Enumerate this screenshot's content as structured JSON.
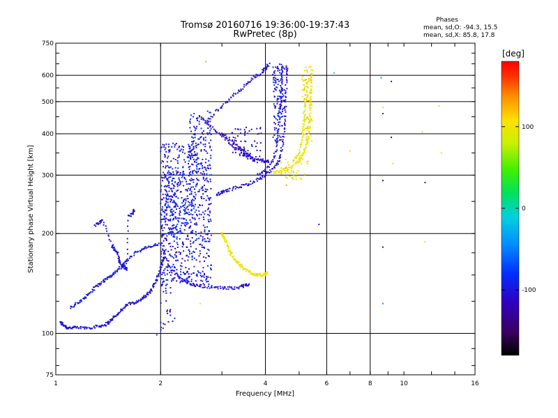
{
  "chart_data": {
    "type": "scatter",
    "title": "Tromsø 20160716 19:36:00-19:37:43",
    "subtitle": "RwPretec (8p)",
    "stats": {
      "heading": "Phases",
      "line_o": "mean, sd,O: -94.3, 15.5",
      "line_x": "mean, sd,X:  85.8, 17.8"
    },
    "xlabel": "Frequency [MHz]",
    "ylabel": "Stationary phase Virtual Height [km]",
    "xscale": "log",
    "yscale": "log",
    "xlim": [
      1,
      16
    ],
    "ylim": [
      75,
      750
    ],
    "x_major_ticks": [
      1,
      2,
      4,
      6,
      8,
      10,
      16
    ],
    "x_tick_labels": [
      "1",
      "2",
      "4",
      "6",
      "8",
      "10",
      "16"
    ],
    "y_major_ticks": [
      75,
      100,
      200,
      300,
      400,
      500,
      600,
      750
    ],
    "y_tick_labels": [
      "75",
      "100",
      "200",
      "300",
      "400",
      "500",
      "600",
      "750"
    ],
    "grid": true,
    "grid_x": [
      2,
      4,
      6,
      8
    ],
    "grid_y": [
      100,
      200,
      300,
      400,
      500,
      600
    ],
    "colorbar": {
      "label": "[deg]",
      "range": [
        -180,
        180
      ],
      "ticks": [
        100,
        0,
        -100
      ],
      "tick_labels": [
        "100",
        "0",
        "-100"
      ]
    },
    "traces": [
      {
        "name_hint": "low_E_ordinary",
        "phase": -100,
        "points": [
          [
            1.03,
            108
          ],
          [
            1.05,
            106
          ],
          [
            1.08,
            104
          ],
          [
            1.12,
            104
          ],
          [
            1.18,
            104
          ],
          [
            1.25,
            104
          ],
          [
            1.32,
            105
          ],
          [
            1.38,
            106
          ],
          [
            1.42,
            108
          ],
          [
            1.46,
            111
          ],
          [
            1.5,
            114
          ],
          [
            1.55,
            118
          ],
          [
            1.6,
            122
          ],
          [
            1.68,
            124
          ],
          [
            1.75,
            126
          ],
          [
            1.8,
            129
          ],
          [
            1.85,
            132
          ],
          [
            1.9,
            138
          ],
          [
            1.95,
            146
          ],
          [
            2.0,
            156
          ],
          [
            2.02,
            164
          ],
          [
            2.05,
            170
          ]
        ]
      },
      {
        "name_hint": "low_E_upper",
        "phase": -95,
        "points": [
          [
            1.1,
            120
          ],
          [
            1.15,
            123
          ],
          [
            1.2,
            127
          ],
          [
            1.25,
            132
          ],
          [
            1.3,
            138
          ],
          [
            1.35,
            142
          ],
          [
            1.4,
            146
          ],
          [
            1.45,
            150
          ],
          [
            1.5,
            154
          ],
          [
            1.55,
            160
          ],
          [
            1.6,
            166
          ],
          [
            1.7,
            176
          ],
          [
            1.8,
            180
          ],
          [
            1.9,
            184
          ],
          [
            2.0,
            186
          ]
        ]
      },
      {
        "name_hint": "steep_E",
        "phase": -100,
        "points": [
          [
            1.3,
            212
          ],
          [
            1.34,
            216
          ],
          [
            1.36,
            220
          ],
          [
            1.45,
            185
          ],
          [
            1.47,
            180
          ],
          [
            1.5,
            176
          ],
          [
            1.52,
            166
          ],
          [
            1.55,
            160
          ],
          [
            1.58,
            158
          ],
          [
            1.6,
            156
          ],
          [
            1.62,
            225
          ],
          [
            1.66,
            230
          ],
          [
            1.68,
            235
          ]
        ]
      },
      {
        "name_hint": "F_lower_o",
        "phase": -105,
        "points": [
          [
            2.1,
            160
          ],
          [
            2.2,
            152
          ],
          [
            2.3,
            145
          ],
          [
            2.4,
            142
          ],
          [
            2.5,
            140
          ],
          [
            2.6,
            139
          ],
          [
            2.8,
            138
          ],
          [
            3.0,
            137
          ],
          [
            3.2,
            137
          ],
          [
            3.4,
            138
          ],
          [
            3.5,
            140
          ],
          [
            3.6,
            141
          ]
        ]
      },
      {
        "name_hint": "F_x_yellow_low",
        "phase": 100,
        "points": [
          [
            3.0,
            200
          ],
          [
            3.05,
            195
          ],
          [
            3.1,
            185
          ],
          [
            3.15,
            178
          ],
          [
            3.2,
            172
          ],
          [
            3.3,
            165
          ],
          [
            3.4,
            160
          ],
          [
            3.5,
            156
          ],
          [
            3.6,
            153
          ],
          [
            3.7,
            151
          ],
          [
            3.8,
            150
          ],
          [
            3.9,
            150
          ],
          [
            4.0,
            151
          ],
          [
            4.05,
            152
          ]
        ]
      },
      {
        "name_hint": "F2_o_cusp",
        "phase": -105,
        "points": [
          [
            2.9,
            262
          ],
          [
            3.0,
            266
          ],
          [
            3.1,
            270
          ],
          [
            3.3,
            275
          ],
          [
            3.5,
            280
          ],
          [
            3.7,
            287
          ],
          [
            3.9,
            295
          ],
          [
            4.1,
            305
          ],
          [
            4.3,
            320
          ],
          [
            4.4,
            340
          ],
          [
            4.5,
            380
          ],
          [
            4.55,
            440
          ],
          [
            4.58,
            520
          ],
          [
            4.6,
            600
          ],
          [
            4.62,
            640
          ]
        ]
      },
      {
        "name_hint": "F2_o_inner",
        "phase": -100,
        "points": [
          [
            3.8,
            300
          ],
          [
            4.0,
            310
          ],
          [
            4.2,
            330
          ],
          [
            4.3,
            360
          ],
          [
            4.35,
            400
          ],
          [
            4.4,
            460
          ],
          [
            4.43,
            520
          ],
          [
            4.45,
            580
          ],
          [
            4.48,
            630
          ]
        ]
      },
      {
        "name_hint": "F2_x_yellow",
        "phase": 100,
        "points": [
          [
            4.2,
            305
          ],
          [
            4.4,
            308
          ],
          [
            4.6,
            312
          ],
          [
            4.8,
            320
          ],
          [
            5.0,
            330
          ],
          [
            5.1,
            345
          ],
          [
            5.2,
            360
          ],
          [
            5.3,
            385
          ],
          [
            5.35,
            420
          ],
          [
            5.38,
            470
          ],
          [
            5.4,
            520
          ],
          [
            5.42,
            570
          ],
          [
            5.44,
            630
          ]
        ]
      },
      {
        "name_hint": "F2_x_inner",
        "phase": 90,
        "points": [
          [
            4.8,
            330
          ],
          [
            5.0,
            350
          ],
          [
            5.1,
            380
          ],
          [
            5.15,
            420
          ],
          [
            5.2,
            470
          ],
          [
            5.25,
            520
          ],
          [
            5.3,
            580
          ]
        ]
      },
      {
        "name_hint": "oblique_upper",
        "phase": -100,
        "points": [
          [
            2.7,
            430
          ],
          [
            2.9,
            470
          ],
          [
            3.1,
            500
          ],
          [
            3.3,
            530
          ],
          [
            3.5,
            560
          ],
          [
            3.7,
            590
          ],
          [
            3.9,
            610
          ],
          [
            4.0,
            630
          ],
          [
            4.1,
            650
          ]
        ]
      },
      {
        "name_hint": "oblique_mid",
        "phase": -110,
        "points": [
          [
            3.0,
            400
          ],
          [
            3.2,
            380
          ],
          [
            3.4,
            360
          ],
          [
            3.5,
            350
          ],
          [
            3.7,
            340
          ],
          [
            3.9,
            333
          ],
          [
            4.0,
            330
          ],
          [
            4.1,
            330
          ]
        ]
      },
      {
        "name_hint": "oblique_mid2",
        "phase": -115,
        "points": [
          [
            2.6,
            450
          ],
          [
            2.8,
            420
          ],
          [
            3.0,
            395
          ],
          [
            3.2,
            372
          ],
          [
            3.4,
            352
          ],
          [
            3.6,
            338
          ],
          [
            3.8,
            330
          ]
        ]
      }
    ],
    "scatter_clusters": [
      {
        "x": [
          2.0,
          2.8
        ],
        "y": [
          140,
          380
        ],
        "phase": -100,
        "n": 650
      },
      {
        "x": [
          2.05,
          2.5
        ],
        "y": [
          200,
          310
        ],
        "phase": -90,
        "n": 150
      },
      {
        "x": [
          2.4,
          2.8
        ],
        "y": [
          300,
          470
        ],
        "phase": -95,
        "n": 120
      },
      {
        "x": [
          2.0,
          2.2
        ],
        "y": [
          100,
          300
        ],
        "phase": -100,
        "n": 80
      },
      {
        "x": [
          3.2,
          3.9
        ],
        "y": [
          340,
          420
        ],
        "phase": -110,
        "n": 60
      },
      {
        "x": [
          4.2,
          4.55
        ],
        "y": [
          380,
          650
        ],
        "phase": -100,
        "n": 120
      },
      {
        "x": [
          5.1,
          5.45
        ],
        "y": [
          380,
          640
        ],
        "phase": 100,
        "n": 80
      },
      {
        "x": [
          4.4,
          5.3
        ],
        "y": [
          290,
          340
        ],
        "phase": 100,
        "n": 40
      }
    ],
    "sparse_points": [
      {
        "x": 2.7,
        "y": 660,
        "phase": 60
      },
      {
        "x": 6.3,
        "y": 610,
        "phase": -20
      },
      {
        "x": 8.6,
        "y": 590,
        "phase": -40
      },
      {
        "x": 9.2,
        "y": 575,
        "phase": -100
      },
      {
        "x": 8.7,
        "y": 480,
        "phase": 110
      },
      {
        "x": 8.7,
        "y": 460,
        "phase": -100
      },
      {
        "x": 12.6,
        "y": 485,
        "phase": 110
      },
      {
        "x": 9.2,
        "y": 390,
        "phase": -140
      },
      {
        "x": 11.3,
        "y": 405,
        "phase": 110
      },
      {
        "x": 12.8,
        "y": 350,
        "phase": 110
      },
      {
        "x": 7.0,
        "y": 355,
        "phase": 110
      },
      {
        "x": 9.3,
        "y": 325,
        "phase": 110
      },
      {
        "x": 8.7,
        "y": 289,
        "phase": -110
      },
      {
        "x": 11.5,
        "y": 285,
        "phase": -110
      },
      {
        "x": 5.7,
        "y": 213,
        "phase": -120
      },
      {
        "x": 8.7,
        "y": 182,
        "phase": -100
      },
      {
        "x": 11.5,
        "y": 189,
        "phase": 110
      },
      {
        "x": 8.7,
        "y": 123,
        "phase": -40
      },
      {
        "x": 2.6,
        "y": 123,
        "phase": 100
      },
      {
        "x": 1.95,
        "y": 99,
        "phase": -100
      },
      {
        "x": 4.6,
        "y": 280,
        "phase": 130
      }
    ]
  }
}
